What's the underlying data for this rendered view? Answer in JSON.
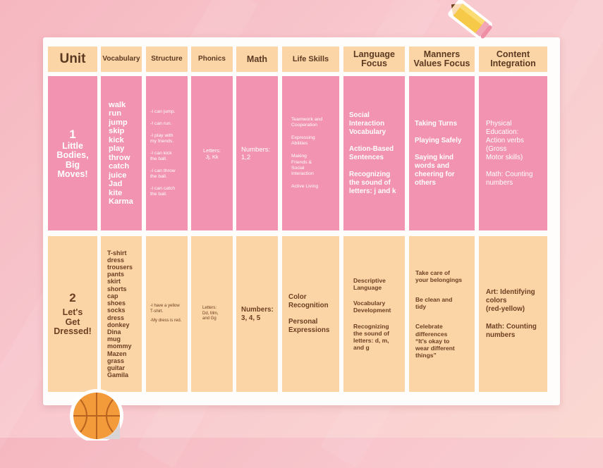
{
  "headers": {
    "unit": "Unit",
    "vocabulary": "Vocabulary",
    "structure": "Structure",
    "phonics": "Phonics",
    "math": "Math",
    "life_skills": "Life Skills",
    "language_focus": [
      "Language",
      "Focus"
    ],
    "manners": [
      "Manners",
      "Values Focus"
    ],
    "content": [
      "Content",
      "Integration"
    ]
  },
  "unit1": {
    "number": "1",
    "name": [
      "Little",
      "Bodies,",
      "Big",
      "Moves!"
    ],
    "vocabulary": [
      "walk",
      "run",
      "jump",
      "skip",
      "kick",
      "play",
      "throw",
      "catch",
      "juice",
      "Jad",
      "kite",
      "Karma"
    ],
    "structure": [
      [
        "-I can jump."
      ],
      [
        "-I can run."
      ],
      [
        "-I play with",
        "my friends."
      ],
      [
        "-I can kick",
        "the ball."
      ],
      [
        "-I can throw",
        "the ball."
      ],
      [
        "-I can catch",
        "the ball."
      ]
    ],
    "phonics": [
      "Letters:",
      "Jj, Kk"
    ],
    "math": [
      "Numbers:",
      "1,2"
    ],
    "life_skills": [
      [
        "Teamwork and",
        "Cooperation"
      ],
      [
        "Expressing",
        "Abilities"
      ],
      [
        "Making",
        "Friends &",
        "Social",
        "Interaction"
      ],
      [
        "Active Living"
      ]
    ],
    "language_focus": [
      [
        "Social",
        "Interaction",
        "Vocabulary"
      ],
      [
        "Action-Based",
        "Sentences"
      ],
      [
        "Recognizing",
        "the sound of",
        "letters: j and k"
      ]
    ],
    "manners": [
      [
        "Taking Turns"
      ],
      [
        "Playing Safely"
      ],
      [
        "Saying kind",
        "words and",
        "cheering for",
        "others"
      ]
    ],
    "content": [
      [
        "Physical",
        "Education:",
        "Action verbs",
        "(Gross",
        "Motor skills)"
      ],
      [
        "Math: Counting",
        "numbers"
      ]
    ]
  },
  "unit2": {
    "number": "2",
    "name": [
      "Let's",
      "Get",
      "Dressed!"
    ],
    "vocabulary": [
      "T-shirt",
      "dress",
      "trousers",
      "pants",
      "skirt",
      "shorts",
      "cap",
      "shoes",
      "socks",
      "dress",
      "donkey",
      "Dina",
      "mug",
      "mommy",
      "Mazen",
      "grass",
      "guitar",
      "Gamila"
    ],
    "structure": [
      [
        "-I have a yellow",
        "T-shirt."
      ],
      [
        "-My dress is red."
      ]
    ],
    "phonics": [
      "Letters:",
      "Dd, Mm,",
      "and Gg"
    ],
    "math": [
      "Numbers:",
      "3, 4, 5"
    ],
    "life_skills": [
      [
        "Color",
        "Recognition"
      ],
      [
        "Personal",
        "Expressions"
      ]
    ],
    "language_focus": [
      [
        "Descriptive",
        "Language"
      ],
      [
        "Vocabulary",
        "Development"
      ],
      [
        "Recognizing",
        "the sound of",
        "letters: d, m,",
        "and g"
      ]
    ],
    "manners": [
      [
        "Take care of",
        "your belongings"
      ],
      [
        "Be clean and",
        "tidy"
      ],
      [
        "Celebrate",
        "differences",
        "“It’s okay to",
        "wear different",
        "things”"
      ]
    ],
    "content": [
      [
        "Art: Identifying",
        "colors",
        "(red-yellow)"
      ],
      [
        "Math: Counting",
        "numbers"
      ]
    ]
  },
  "colors": {
    "pink": "#f193b1",
    "peach": "#fbd5a6",
    "header_text": "#5c3a22"
  },
  "decor": {
    "top_right": "pencil-icon",
    "bottom_left": "basketball-icon"
  }
}
